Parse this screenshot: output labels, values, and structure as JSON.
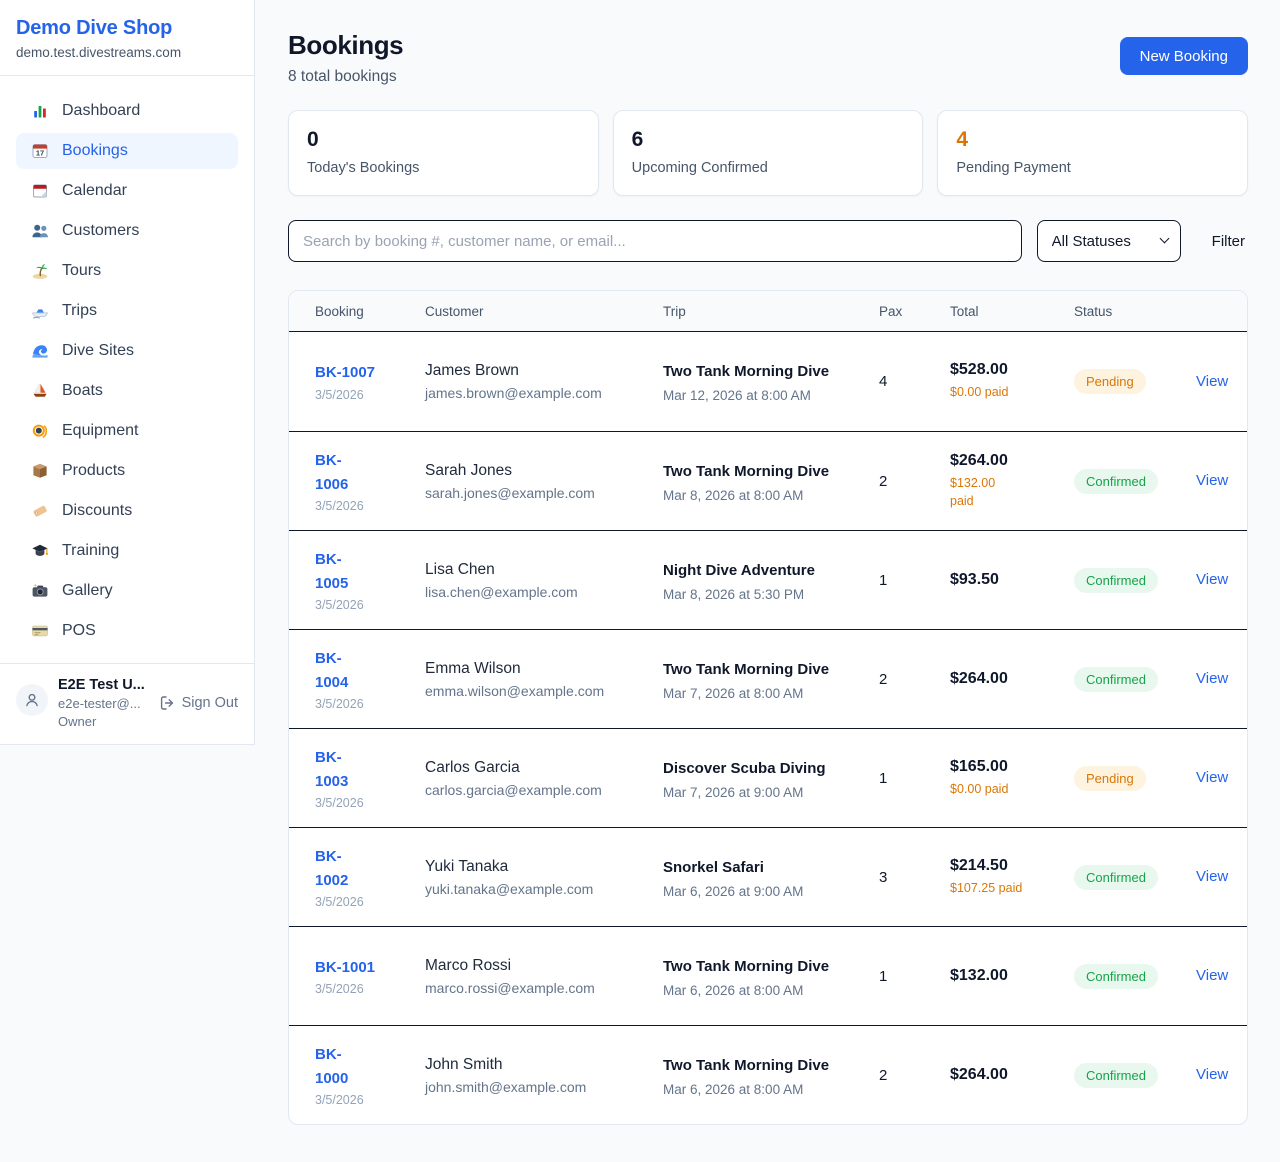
{
  "sidebar": {
    "brand": {
      "name": "Demo Dive Shop",
      "domain": "demo.test.divestreams.com"
    },
    "items": [
      {
        "label": "Dashboard",
        "icon": "bar-chart",
        "active": false
      },
      {
        "label": "Bookings",
        "icon": "calendar",
        "active": true
      },
      {
        "label": "Calendar",
        "icon": "tear-off-calendar",
        "active": false
      },
      {
        "label": "Customers",
        "icon": "people",
        "active": false
      },
      {
        "label": "Tours",
        "icon": "island",
        "active": false
      },
      {
        "label": "Trips",
        "icon": "speedboat",
        "active": false
      },
      {
        "label": "Dive Sites",
        "icon": "wave",
        "active": false
      },
      {
        "label": "Boats",
        "icon": "sailboat",
        "active": false
      },
      {
        "label": "Equipment",
        "icon": "dive-mask",
        "active": false
      },
      {
        "label": "Products",
        "icon": "package",
        "active": false
      },
      {
        "label": "Discounts",
        "icon": "tag",
        "active": false
      },
      {
        "label": "Training",
        "icon": "graduation-cap",
        "active": false
      },
      {
        "label": "Gallery",
        "icon": "camera",
        "active": false
      },
      {
        "label": "POS",
        "icon": "credit-card",
        "active": false
      }
    ],
    "user": {
      "name": "E2E Test U...",
      "email": "e2e-tester@...",
      "role": "Owner",
      "sign_out": "Sign Out"
    }
  },
  "header": {
    "title": "Bookings",
    "subtitle": "8 total bookings",
    "new_booking": "New Booking"
  },
  "stats": [
    {
      "value": "0",
      "label": "Today's Bookings",
      "color": "#0f172a"
    },
    {
      "value": "6",
      "label": "Upcoming Confirmed",
      "color": "#0f172a"
    },
    {
      "value": "4",
      "label": "Pending Payment",
      "color": "#d97706"
    }
  ],
  "filters": {
    "search_placeholder": "Search by booking #, customer name, or email...",
    "status_selected": "All Statuses",
    "filter_label": "Filter"
  },
  "table": {
    "columns": [
      "Booking",
      "Customer",
      "Trip",
      "Pax",
      "Total",
      "Status"
    ],
    "view_label": "View",
    "status_styles": {
      "Pending": {
        "color": "#d97706",
        "bg": "#fdf3df"
      },
      "Confirmed": {
        "color": "#16a34a",
        "bg": "#e8f8ee"
      }
    },
    "rows": [
      {
        "id": "BK-1007",
        "id_two_lines": false,
        "date": "3/5/2026",
        "customer": "James Brown",
        "email": "james.brown@example.com",
        "trip": "Two Tank Morning Dive",
        "trip_time": "Mar 12, 2026 at 8:00 AM",
        "pax": "4",
        "total": "$528.00",
        "paid": "$0.00 paid",
        "paid_two_lines": false,
        "status": "Pending"
      },
      {
        "id": "BK-1006",
        "id_two_lines": true,
        "date": "3/5/2026",
        "customer": "Sarah Jones",
        "email": "sarah.jones@example.com",
        "trip": "Two Tank Morning Dive",
        "trip_time": "Mar 8, 2026 at 8:00 AM",
        "pax": "2",
        "total": "$264.00",
        "paid": "$132.00 paid",
        "paid_two_lines": true,
        "status": "Confirmed"
      },
      {
        "id": "BK-1005",
        "id_two_lines": true,
        "date": "3/5/2026",
        "customer": "Lisa Chen",
        "email": "lisa.chen@example.com",
        "trip": "Night Dive Adventure",
        "trip_time": "Mar 8, 2026 at 5:30 PM",
        "pax": "1",
        "total": "$93.50",
        "paid": null,
        "paid_two_lines": false,
        "status": "Confirmed"
      },
      {
        "id": "BK-1004",
        "id_two_lines": true,
        "date": "3/5/2026",
        "customer": "Emma Wilson",
        "email": "emma.wilson@example.com",
        "trip": "Two Tank Morning Dive",
        "trip_time": "Mar 7, 2026 at 8:00 AM",
        "pax": "2",
        "total": "$264.00",
        "paid": null,
        "paid_two_lines": false,
        "status": "Confirmed"
      },
      {
        "id": "BK-1003",
        "id_two_lines": true,
        "date": "3/5/2026",
        "customer": "Carlos Garcia",
        "email": "carlos.garcia@example.com",
        "trip": "Discover Scuba Diving",
        "trip_time": "Mar 7, 2026 at 9:00 AM",
        "pax": "1",
        "total": "$165.00",
        "paid": "$0.00 paid",
        "paid_two_lines": false,
        "status": "Pending"
      },
      {
        "id": "BK-1002",
        "id_two_lines": true,
        "date": "3/5/2026",
        "customer": "Yuki Tanaka",
        "email": "yuki.tanaka@example.com",
        "trip": "Snorkel Safari",
        "trip_time": "Mar 6, 2026 at 9:00 AM",
        "pax": "3",
        "total": "$214.50",
        "paid": "$107.25 paid",
        "paid_two_lines": false,
        "status": "Confirmed"
      },
      {
        "id": "BK-1001",
        "id_two_lines": false,
        "date": "3/5/2026",
        "customer": "Marco Rossi",
        "email": "marco.rossi@example.com",
        "trip": "Two Tank Morning Dive",
        "trip_time": "Mar 6, 2026 at 8:00 AM",
        "pax": "1",
        "total": "$132.00",
        "paid": null,
        "paid_two_lines": false,
        "status": "Confirmed"
      },
      {
        "id": "BK-1000",
        "id_two_lines": true,
        "date": "3/5/2026",
        "customer": "John Smith",
        "email": "john.smith@example.com",
        "trip": "Two Tank Morning Dive",
        "trip_time": "Mar 6, 2026 at 8:00 AM",
        "pax": "2",
        "total": "$264.00",
        "paid": null,
        "paid_two_lines": false,
        "status": "Confirmed"
      }
    ]
  },
  "colors": {
    "accent": "#2563eb",
    "pending": "#d97706",
    "confirmed": "#16a34a",
    "page_bg": "#f8fafc"
  }
}
